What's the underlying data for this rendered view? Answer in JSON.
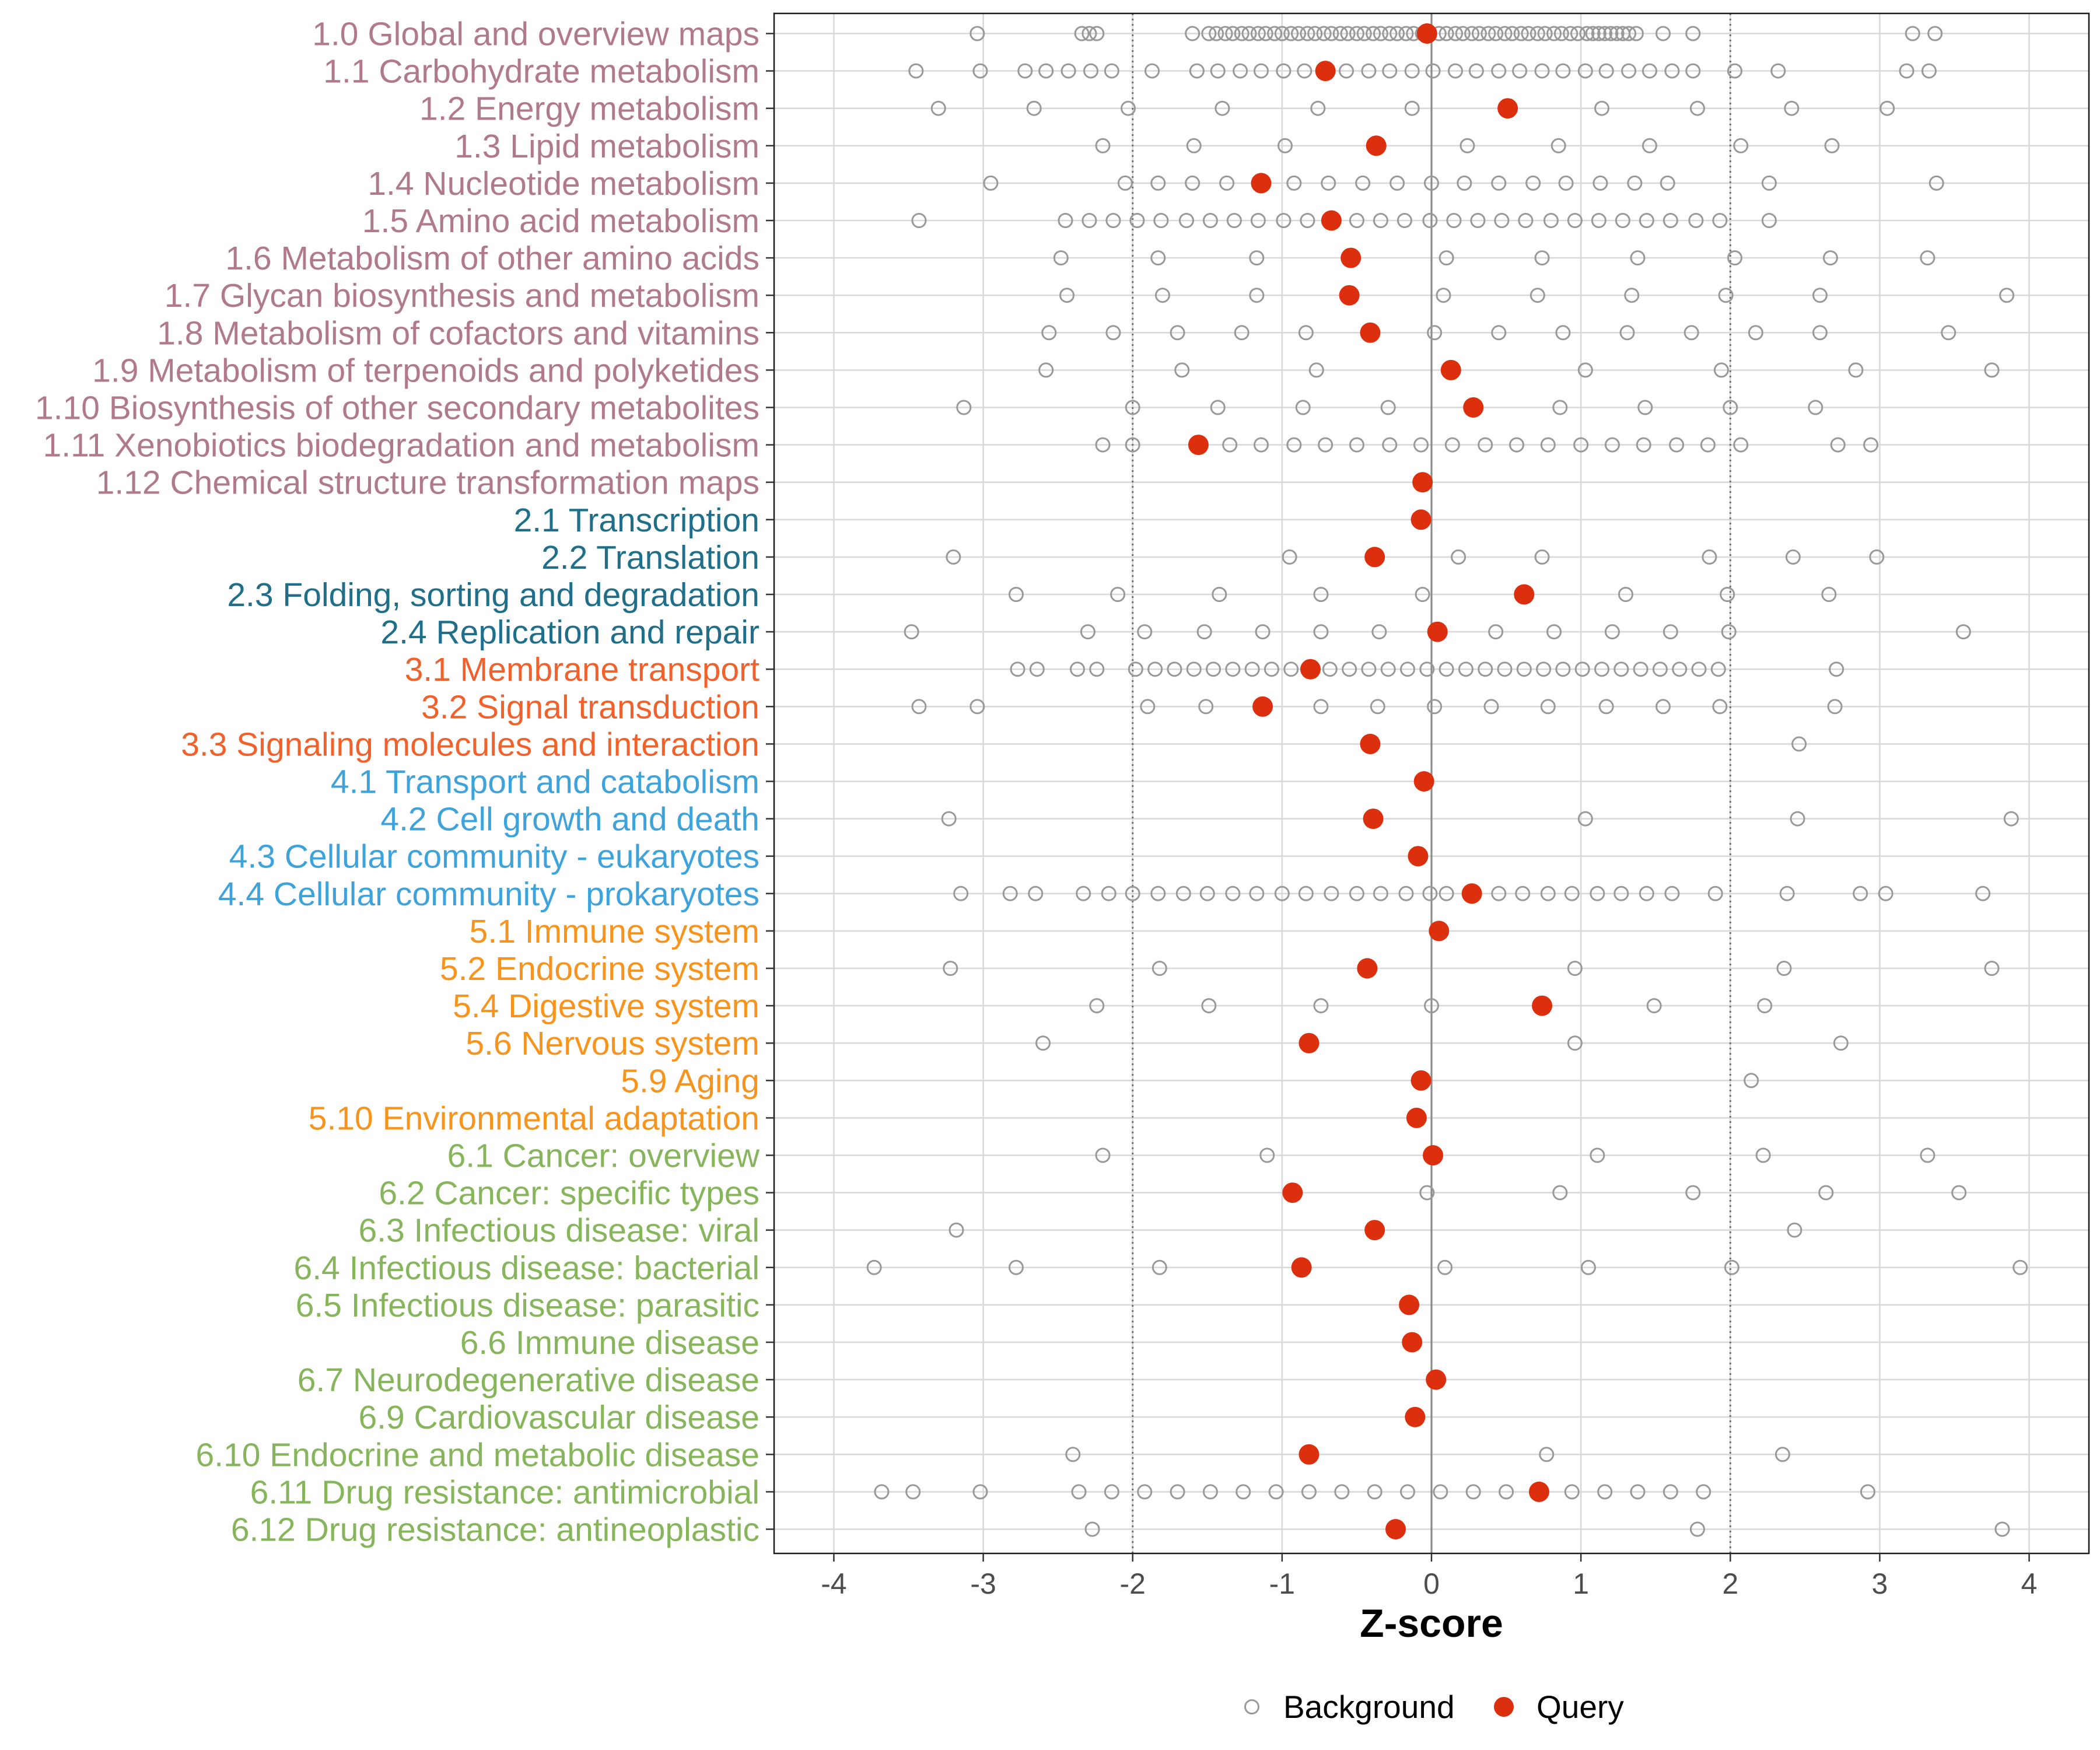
{
  "chart_data": {
    "type": "scatter",
    "xlabel": "Z-score",
    "xlim": [
      -4.4,
      4.4
    ],
    "x_ticks": [
      -4,
      -3,
      -2,
      -1,
      0,
      1,
      2,
      3,
      4
    ],
    "x_tick_labels": [
      "-4",
      "-3",
      "-2",
      "-1",
      "0",
      "1",
      "2",
      "3",
      "4"
    ],
    "reference_lines": {
      "dotted": [
        -2,
        2
      ],
      "solid": [
        0
      ]
    },
    "grid": true,
    "legend": {
      "position": "bottom",
      "items": [
        {
          "label": "Background",
          "marker": "open-circle",
          "color": "#999999"
        },
        {
          "label": "Query",
          "marker": "filled-circle",
          "color": "#DC2F0E"
        }
      ]
    },
    "group_colors": {
      "1": "#B07A8C",
      "2": "#1F6F8B",
      "3": "#F0612B",
      "4": "#3EA3DA",
      "5": "#F7941D",
      "6": "#86B55B"
    },
    "categories": [
      {
        "label": "1.0 Global and overview maps",
        "group": 1,
        "query": -0.03,
        "background": [
          -3.04,
          -2.34,
          -2.29,
          -2.24,
          -1.6,
          -1.49,
          -1.44,
          -1.38,
          -1.33,
          -1.27,
          -1.22,
          -1.16,
          -1.11,
          -1.05,
          -1.0,
          -0.94,
          -0.89,
          -0.83,
          -0.78,
          -0.72,
          -0.67,
          -0.61,
          -0.56,
          -0.5,
          -0.45,
          -0.39,
          -0.34,
          -0.28,
          -0.23,
          -0.17,
          -0.12,
          -0.06,
          0.05,
          0.1,
          0.16,
          0.21,
          0.27,
          0.32,
          0.38,
          0.43,
          0.49,
          0.54,
          0.6,
          0.65,
          0.71,
          0.76,
          0.82,
          0.87,
          0.93,
          0.98,
          1.04,
          1.08,
          1.12,
          1.16,
          1.2,
          1.24,
          1.28,
          1.32,
          1.37,
          1.55,
          1.75,
          3.22,
          3.37
        ]
      },
      {
        "label": "1.1 Carbohydrate metabolism",
        "group": 1,
        "query": -0.71,
        "background": [
          -3.45,
          -3.02,
          -2.72,
          -2.58,
          -2.43,
          -2.28,
          -2.14,
          -1.87,
          -1.57,
          -1.43,
          -1.28,
          -1.14,
          -0.99,
          -0.85,
          -0.57,
          -0.42,
          -0.28,
          -0.13,
          0.01,
          0.16,
          0.3,
          0.45,
          0.59,
          0.74,
          0.88,
          1.03,
          1.17,
          1.32,
          1.46,
          1.61,
          1.75,
          2.03,
          2.32,
          3.18,
          3.33
        ]
      },
      {
        "label": "1.2 Energy metabolism",
        "group": 1,
        "query": 0.51,
        "background": [
          -3.3,
          -2.66,
          -2.03,
          -1.4,
          -0.76,
          -0.13,
          1.14,
          1.78,
          2.41,
          3.05
        ]
      },
      {
        "label": "1.3 Lipid metabolism",
        "group": 1,
        "query": -0.37,
        "background": [
          -2.2,
          -1.59,
          -0.98,
          0.24,
          0.85,
          1.46,
          2.07,
          2.68
        ]
      },
      {
        "label": "1.4 Nucleotide metabolism",
        "group": 1,
        "query": -1.14,
        "background": [
          -2.95,
          -2.05,
          -1.83,
          -1.6,
          -1.37,
          -0.92,
          -0.69,
          -0.46,
          -0.23,
          0.0,
          0.22,
          0.45,
          0.68,
          0.9,
          1.13,
          1.36,
          1.58,
          2.26,
          3.38
        ]
      },
      {
        "label": "1.5 Amino acid metabolism",
        "group": 1,
        "query": -0.67,
        "background": [
          -3.43,
          -2.45,
          -2.29,
          -2.13,
          -1.97,
          -1.81,
          -1.64,
          -1.48,
          -1.32,
          -1.16,
          -0.99,
          -0.83,
          -0.5,
          -0.34,
          -0.18,
          -0.01,
          0.15,
          0.31,
          0.47,
          0.63,
          0.8,
          0.96,
          1.12,
          1.28,
          1.44,
          1.6,
          1.77,
          1.93,
          2.26
        ]
      },
      {
        "label": "1.6 Metabolism of other amino acids",
        "group": 1,
        "query": -0.54,
        "background": [
          -2.48,
          -1.83,
          -1.17,
          0.1,
          0.74,
          1.38,
          2.03,
          2.67,
          3.32
        ]
      },
      {
        "label": "1.7 Glycan biosynthesis and metabolism",
        "group": 1,
        "query": -0.55,
        "background": [
          -2.44,
          -1.8,
          -1.17,
          0.08,
          0.71,
          1.34,
          1.97,
          2.6,
          3.85
        ]
      },
      {
        "label": "1.8 Metabolism of cofactors and vitamins",
        "group": 1,
        "query": -0.41,
        "background": [
          -2.56,
          -2.13,
          -1.7,
          -1.27,
          -0.84,
          0.02,
          0.45,
          0.88,
          1.31,
          1.74,
          2.17,
          2.6,
          3.46
        ]
      },
      {
        "label": "1.9 Metabolism of terpenoids and polyketides",
        "group": 1,
        "query": 0.13,
        "background": [
          -2.58,
          -1.67,
          -0.77,
          1.03,
          1.94,
          2.84,
          3.75
        ]
      },
      {
        "label": "1.10 Biosynthesis of other secondary metabolites",
        "group": 1,
        "query": 0.28,
        "background": [
          -3.13,
          -2.0,
          -1.43,
          -0.86,
          -0.29,
          0.86,
          1.43,
          2.0,
          2.57
        ]
      },
      {
        "label": "1.11 Xenobiotics biodegradation and metabolism",
        "group": 1,
        "query": -1.56,
        "background": [
          -2.2,
          -2.0,
          -1.35,
          -1.14,
          -0.92,
          -0.71,
          -0.5,
          -0.28,
          -0.07,
          0.14,
          0.36,
          0.57,
          0.78,
          1.0,
          1.21,
          1.42,
          1.64,
          1.85,
          2.07,
          2.72,
          2.94
        ]
      },
      {
        "label": "1.12 Chemical structure transformation maps",
        "group": 1,
        "query": -0.06,
        "background": []
      },
      {
        "label": "2.1 Transcription",
        "group": 2,
        "query": -0.07,
        "background": []
      },
      {
        "label": "2.2 Translation",
        "group": 2,
        "query": -0.38,
        "background": [
          -3.2,
          -0.95,
          0.18,
          0.74,
          1.86,
          2.42,
          2.98
        ]
      },
      {
        "label": "2.3 Folding, sorting and degradation",
        "group": 2,
        "query": 0.62,
        "background": [
          -2.78,
          -2.1,
          -1.42,
          -0.74,
          -0.06,
          1.3,
          1.98,
          2.66
        ]
      },
      {
        "label": "2.4 Replication and repair",
        "group": 2,
        "query": 0.04,
        "background": [
          -3.48,
          -2.3,
          -1.92,
          -1.52,
          -1.13,
          -0.74,
          -0.35,
          0.43,
          0.82,
          1.21,
          1.6,
          1.99,
          3.56
        ]
      },
      {
        "label": "3.1 Membrane transport",
        "group": 3,
        "query": -0.81,
        "background": [
          -2.77,
          -2.64,
          -2.37,
          -2.24,
          -1.98,
          -1.85,
          -1.72,
          -1.59,
          -1.46,
          -1.33,
          -1.2,
          -1.07,
          -0.94,
          -0.68,
          -0.55,
          -0.42,
          -0.29,
          -0.16,
          -0.03,
          0.1,
          0.23,
          0.36,
          0.49,
          0.62,
          0.75,
          0.88,
          1.01,
          1.14,
          1.27,
          1.4,
          1.53,
          1.66,
          1.79,
          1.92,
          2.71
        ]
      },
      {
        "label": "3.2 Signal transduction",
        "group": 3,
        "query": -1.13,
        "background": [
          -3.43,
          -3.04,
          -1.9,
          -1.51,
          -0.74,
          -0.36,
          0.02,
          0.4,
          0.78,
          1.17,
          1.55,
          1.93,
          2.7
        ]
      },
      {
        "label": "3.3 Signaling molecules and interaction",
        "group": 3,
        "query": -0.41,
        "background": [
          2.46
        ]
      },
      {
        "label": "4.1 Transport and catabolism",
        "group": 4,
        "query": -0.05,
        "background": []
      },
      {
        "label": "4.2 Cell growth and death",
        "group": 4,
        "query": -0.39,
        "background": [
          -3.23,
          1.03,
          2.45,
          3.88
        ]
      },
      {
        "label": "4.3 Cellular community - eukaryotes",
        "group": 4,
        "query": -0.09,
        "background": []
      },
      {
        "label": "4.4 Cellular community - prokaryotes",
        "group": 4,
        "query": 0.27,
        "background": [
          -3.15,
          -2.82,
          -2.65,
          -2.33,
          -2.16,
          -2.0,
          -1.83,
          -1.66,
          -1.5,
          -1.33,
          -1.17,
          -1.0,
          -0.84,
          -0.67,
          -0.5,
          -0.34,
          -0.17,
          -0.01,
          0.1,
          0.45,
          0.61,
          0.78,
          0.94,
          1.11,
          1.27,
          1.44,
          1.61,
          1.9,
          2.38,
          2.87,
          3.04,
          3.69
        ]
      },
      {
        "label": "5.1 Immune system",
        "group": 5,
        "query": 0.05,
        "background": []
      },
      {
        "label": "5.2 Endocrine system",
        "group": 5,
        "query": -0.43,
        "background": [
          -3.22,
          -1.82,
          0.96,
          2.36,
          3.75
        ]
      },
      {
        "label": "5.4 Digestive system",
        "group": 5,
        "query": 0.74,
        "background": [
          -2.24,
          -1.49,
          -0.74,
          0.0,
          1.49,
          2.23
        ]
      },
      {
        "label": "5.6 Nervous system",
        "group": 5,
        "query": -0.82,
        "background": [
          -2.6,
          0.96,
          2.74
        ]
      },
      {
        "label": "5.9 Aging",
        "group": 5,
        "query": -0.07,
        "background": [
          2.14
        ]
      },
      {
        "label": "5.10 Environmental adaptation",
        "group": 5,
        "query": -0.1,
        "background": []
      },
      {
        "label": "6.1 Cancer: overview",
        "group": 6,
        "query": 0.01,
        "background": [
          -2.2,
          -1.1,
          1.11,
          2.22,
          3.32
        ]
      },
      {
        "label": "6.2 Cancer: specific types",
        "group": 6,
        "query": -0.93,
        "background": [
          -0.03,
          0.86,
          1.75,
          2.64,
          3.53
        ]
      },
      {
        "label": "6.3 Infectious disease: viral",
        "group": 6,
        "query": -0.38,
        "background": [
          -3.18,
          2.43
        ]
      },
      {
        "label": "6.4 Infectious disease: bacterial",
        "group": 6,
        "query": -0.87,
        "background": [
          -3.73,
          -2.78,
          -1.82,
          0.09,
          1.05,
          2.01,
          3.94
        ]
      },
      {
        "label": "6.5 Infectious disease: parasitic",
        "group": 6,
        "query": -0.15,
        "background": []
      },
      {
        "label": "6.6 Immune disease",
        "group": 6,
        "query": -0.13,
        "background": []
      },
      {
        "label": "6.7 Neurodegenerative disease",
        "group": 6,
        "query": 0.03,
        "background": []
      },
      {
        "label": "6.9 Cardiovascular disease",
        "group": 6,
        "query": -0.11,
        "background": []
      },
      {
        "label": "6.10 Endocrine and metabolic disease",
        "group": 6,
        "query": -0.82,
        "background": [
          -2.4,
          0.77,
          2.35
        ]
      },
      {
        "label": "6.11 Drug resistance: antimicrobial",
        "group": 6,
        "query": 0.72,
        "background": [
          -3.68,
          -3.47,
          -3.02,
          -2.36,
          -2.14,
          -1.92,
          -1.7,
          -1.48,
          -1.26,
          -1.04,
          -0.82,
          -0.6,
          -0.38,
          -0.16,
          0.06,
          0.28,
          0.5,
          0.94,
          1.16,
          1.38,
          1.6,
          1.82,
          2.92
        ]
      },
      {
        "label": "6.12 Drug resistance: antineoplastic",
        "group": 6,
        "query": -0.24,
        "background": [
          -2.27,
          1.78,
          3.82
        ]
      }
    ]
  }
}
